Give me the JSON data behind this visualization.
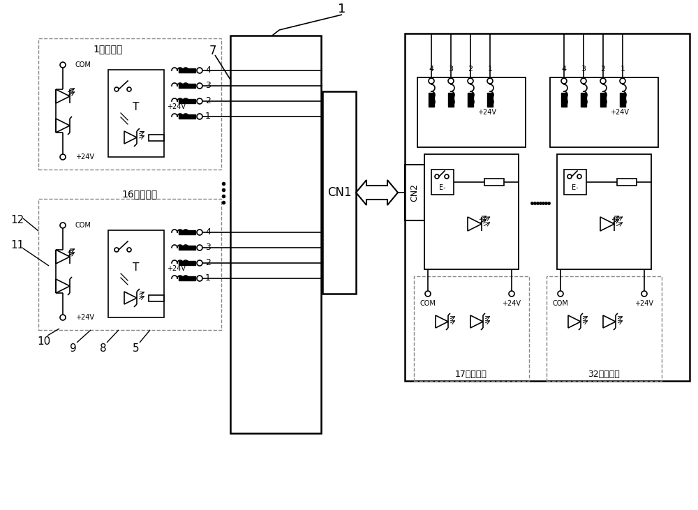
{
  "bg_color": "#ffffff",
  "lc": "#000000",
  "dc": "#888888",
  "label_1F": "1层内指令",
  "label_16F": "16层内指令",
  "label_17F": "17层内指令",
  "label_32F": "32层内指令",
  "label_CN1": "CN1",
  "label_CN2": "CN2",
  "label_COM": "COM",
  "label_24V": "+24V",
  "label_1": "1",
  "label_7": "7",
  "label_12": "12",
  "label_11": "11",
  "label_10": "10",
  "label_9": "9",
  "label_8": "8",
  "label_5": "5"
}
